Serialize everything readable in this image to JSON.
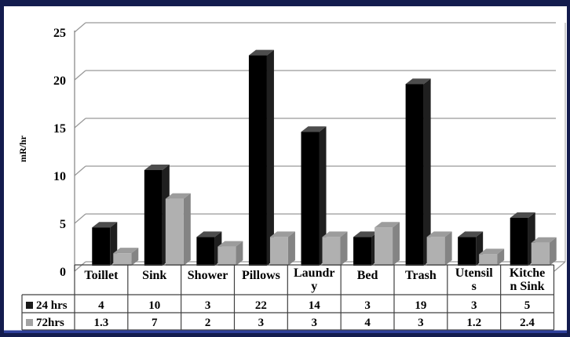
{
  "window": {
    "border_color": "#131c4e",
    "accent_line_color": "#2e3f9a",
    "background": "#ffffff"
  },
  "chart_data": {
    "type": "bar",
    "style": "3d-clustered-column",
    "title": "",
    "xlabel": "",
    "ylabel": "mR/hr",
    "categories": [
      "Toillet",
      "Sink",
      "Shower",
      "Pillows",
      "Laundry",
      "Bed",
      "Trash",
      "Utensils",
      "Kitchen Sink"
    ],
    "categories_display": [
      [
        "Toillet"
      ],
      [
        "Sink"
      ],
      [
        "Shower"
      ],
      [
        "Pillows"
      ],
      [
        "Laundr",
        "y"
      ],
      [
        "Bed"
      ],
      [
        "Trash"
      ],
      [
        "Utensil",
        "s"
      ],
      [
        "Kitche",
        "n Sink"
      ]
    ],
    "series": [
      {
        "name": "24 hrs",
        "values": [
          4,
          10,
          3,
          22,
          14,
          3,
          19,
          3,
          5
        ],
        "display_values": [
          "4",
          "10",
          "3",
          "22",
          "14",
          "3",
          "19",
          "3",
          "5"
        ],
        "bar_front": "#000000",
        "bar_side": "#1f1f1f",
        "bar_top": "#4d4d4d",
        "marker_color": "#1a1a1a"
      },
      {
        "name": "72hrs",
        "values": [
          1.3,
          7,
          2,
          3,
          3,
          4,
          3,
          1.2,
          2.4
        ],
        "display_values": [
          "1.3",
          "7",
          "2",
          "3",
          "3",
          "4",
          "3",
          "1.2",
          "2.4"
        ],
        "bar_front": "#b0b0b0",
        "bar_side": "#848484",
        "bar_top": "#9c9c9c",
        "marker_color": "#a3a3a3"
      }
    ],
    "ylim": [
      0,
      25
    ],
    "yticks": [
      "0",
      "5",
      "10",
      "15",
      "20",
      "25"
    ],
    "grid": true,
    "gridline_color": "#999999",
    "axis_line_color": "#8c8c8c",
    "back_wall_edge_color": "#b3b3b3",
    "table_border_color": "#404040",
    "text_color": "#000000",
    "legend_position": "data-table-left",
    "has_data_table": true
  }
}
